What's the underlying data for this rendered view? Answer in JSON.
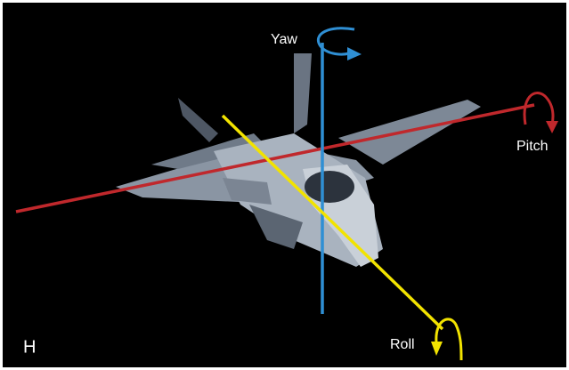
{
  "axes": {
    "yaw": "Yaw",
    "pitch": "Pitch",
    "roll": "Roll"
  },
  "panel_label": "H"
}
